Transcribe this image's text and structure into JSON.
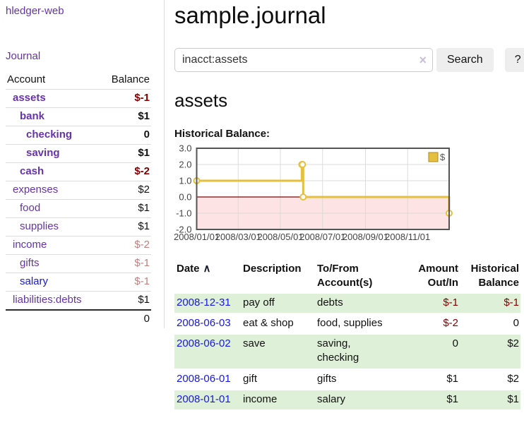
{
  "app": {
    "brand": "hledger-web",
    "nav_journal": "Journal"
  },
  "sidebar": {
    "accounts_header": {
      "account": "Account",
      "balance": "Balance"
    },
    "accounts": [
      {
        "name": "assets",
        "balance": "$-1"
      },
      {
        "name": "bank",
        "balance": "$1"
      },
      {
        "name": "checking",
        "balance": "0"
      },
      {
        "name": "saving",
        "balance": "$1"
      },
      {
        "name": "cash",
        "balance": "$-2"
      },
      {
        "name": "expenses",
        "balance": "$2"
      },
      {
        "name": "food",
        "balance": "$1"
      },
      {
        "name": "supplies",
        "balance": "$1"
      },
      {
        "name": "income",
        "balance": "$-2"
      },
      {
        "name": "gifts",
        "balance": "$-1"
      },
      {
        "name": "salary",
        "balance": "$-1"
      },
      {
        "name": "liabilities:debts",
        "balance": "$1"
      }
    ],
    "total": "0"
  },
  "header": {
    "title": "sample.journal"
  },
  "search": {
    "value": "inacct:assets",
    "clear_icon": "×",
    "button_label": "Search",
    "help_label": "?"
  },
  "register": {
    "heading": "assets",
    "chart_label": "Historical Balance:",
    "table": {
      "headers": {
        "date": "Date",
        "sort_icon": "∧",
        "description": "Description",
        "account": "To/From Account(s)",
        "amount": "Amount Out/In",
        "balance": "Historical Balance"
      },
      "rows": [
        {
          "date": "2008-12-31",
          "description": "pay off",
          "accounts": "debts",
          "amount": "$-1",
          "balance": "$-1"
        },
        {
          "date": "2008-06-03",
          "description": "eat & shop",
          "accounts": "food, supplies",
          "amount": "$-2",
          "balance": "0"
        },
        {
          "date": "2008-06-02",
          "description": "save",
          "accounts": "saving, checking",
          "amount": "0",
          "balance": "$2"
        },
        {
          "date": "2008-06-01",
          "description": "gift",
          "accounts": "gifts",
          "amount": "$1",
          "balance": "$2"
        },
        {
          "date": "2008-01-01",
          "description": "income",
          "accounts": "salary",
          "amount": "$1",
          "balance": "$1"
        }
      ]
    }
  },
  "chart_data": {
    "type": "line",
    "step": true,
    "title": "Historical Balance",
    "xlabel": "",
    "ylabel": "",
    "ylim": [
      -2.0,
      3.0
    ],
    "yticks": [
      3.0,
      2.0,
      1.0,
      0.0,
      -1.0,
      -2.0
    ],
    "x_range": [
      "2008-01-01",
      "2008-12-31"
    ],
    "xticks": [
      {
        "date": "2008-01-01",
        "label": "2008/01/01"
      },
      {
        "date": "2008-03-01",
        "label": "2008/03/01"
      },
      {
        "date": "2008-05-01",
        "label": "2008/05/01"
      },
      {
        "date": "2008-07-01",
        "label": "2008/07/01"
      },
      {
        "date": "2008-09-01",
        "label": "2008/09/01"
      },
      {
        "date": "2008-11-01",
        "label": "2008/11/01"
      }
    ],
    "grid": true,
    "legend_position": "top-right",
    "series": [
      {
        "name": "$",
        "points": [
          [
            "2008-01-01",
            1
          ],
          [
            "2008-06-01",
            2
          ],
          [
            "2008-06-02",
            2
          ],
          [
            "2008-06-03",
            0
          ],
          [
            "2008-12-31",
            -1
          ]
        ]
      }
    ],
    "colors": {
      "line": "#e5bf3e",
      "negative_region": "#f25050",
      "zero_line": "#800000",
      "grid": "#d7d7d7",
      "border": "#545454",
      "tick_text": "#444444"
    }
  },
  "colors": {
    "purple": "#6633aa",
    "blue": "#1717e0",
    "negred": "#800000",
    "rose": "#c08080",
    "rowgreen": "#dff0d8",
    "gold": "#e5bf3e"
  }
}
